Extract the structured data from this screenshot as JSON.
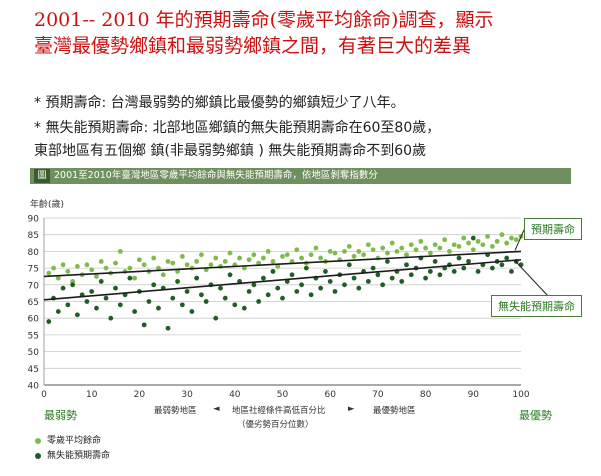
{
  "slide": {
    "title_line1": "2001-- 2010 年的預期壽命(零歲平均餘命)調查，顯示",
    "title_line2": "臺灣最優勢鄉鎮和最弱勢鄉鎮之間，有著巨大的差異",
    "bullets": [
      "* 預期壽命:  台灣最弱勢的鄉鎮比最優勢的鄉鎮短少了八年。",
      "* 無失能預期壽命:  北部地區鄉鎮的無失能預期壽命在60至80歲，",
      "   東部地區有五個鄉  鎮(非最弱勢鄉鎮 ) 無失能預期壽命不到60歲"
    ]
  },
  "figure": {
    "tag": "圖 1",
    "caption": "2001至2010年臺灣地區零歲平均餘命與無失能預期壽命，依地區剝奪指數分",
    "yaxis_title": "年齡(歲)",
    "left_end_label": "最弱勢",
    "right_end_label": "最優勢",
    "left_region_label": "最弱勢地區",
    "right_region_label": "最優勢地區",
    "xaxis_title_line1": "地區社經條件高低百分比",
    "xaxis_title_line2": "（優劣勢百分位數）",
    "arrow_left": "◄",
    "arrow_right": "►",
    "callout_le": "預期壽命",
    "callout_dfle": "無失能預期壽命"
  },
  "colors": {
    "title_red": "#cc1111",
    "le_green": "#7dbb4a",
    "dfle_green": "#1f5e24",
    "banner": "#6f8f5e",
    "callout_text": "#2a7a22"
  },
  "chart_data": {
    "type": "scatter",
    "x_range": [
      0,
      100
    ],
    "ylim": [
      40,
      90
    ],
    "x_ticks": [
      0,
      10,
      20,
      30,
      40,
      50,
      60,
      70,
      80,
      90,
      100
    ],
    "y_ticks": [
      40,
      45,
      50,
      55,
      60,
      65,
      70,
      75,
      80,
      85,
      90
    ],
    "grid": true,
    "legend_position": "bottom-left",
    "series": [
      {
        "name": "零歲平均餘命",
        "trend": {
          "x": [
            0,
            100
          ],
          "y": [
            72.5,
            80
          ]
        },
        "x": [
          1,
          2,
          3,
          4,
          5,
          6,
          7,
          8,
          9,
          10,
          11,
          12,
          13,
          14,
          15,
          16,
          17,
          18,
          19,
          20,
          21,
          22,
          23,
          24,
          25,
          26,
          27,
          28,
          29,
          30,
          31,
          32,
          33,
          34,
          35,
          36,
          37,
          38,
          39,
          40,
          41,
          42,
          43,
          44,
          45,
          46,
          47,
          48,
          49,
          50,
          51,
          52,
          53,
          54,
          55,
          56,
          57,
          58,
          59,
          60,
          61,
          62,
          63,
          64,
          65,
          66,
          67,
          68,
          69,
          70,
          71,
          72,
          73,
          74,
          75,
          76,
          77,
          78,
          79,
          80,
          81,
          82,
          83,
          84,
          85,
          86,
          87,
          88,
          89,
          90,
          91,
          92,
          93,
          94,
          95,
          96,
          97,
          98,
          99,
          100
        ],
        "y": [
          73.5,
          75,
          72,
          76,
          74,
          71,
          75.5,
          73,
          76,
          74.5,
          72.5,
          77,
          75,
          73.5,
          76.5,
          80,
          74,
          75,
          72,
          77.5,
          76,
          74,
          78,
          75,
          73,
          77,
          76.5,
          74,
          78.5,
          76,
          75,
          77,
          79,
          74.5,
          76,
          78,
          75.5,
          77,
          79.5,
          76,
          78,
          75,
          77.5,
          79,
          76.5,
          78,
          80,
          77,
          75.5,
          78.5,
          79,
          77,
          80.5,
          78,
          76.5,
          79,
          81,
          78,
          77,
          80,
          79.5,
          77.5,
          80,
          81.5,
          78.5,
          80,
          79,
          82,
          80.5,
          78,
          81,
          79.5,
          82.5,
          80,
          81,
          79,
          82,
          80.5,
          83,
          81,
          79.5,
          82,
          81,
          83.5,
          80,
          82,
          81.5,
          84,
          82.5,
          80.5,
          83,
          82,
          84.5,
          81.5,
          83,
          85,
          82.5,
          84,
          83.5,
          84.5
        ]
      },
      {
        "name": "無失能預期壽命",
        "trend": {
          "x": [
            0,
            100
          ],
          "y": [
            65.5,
            77.5
          ]
        },
        "x": [
          1,
          2,
          3,
          4,
          5,
          6,
          7,
          8,
          9,
          10,
          11,
          12,
          13,
          14,
          15,
          16,
          17,
          18,
          19,
          20,
          21,
          22,
          23,
          24,
          25,
          26,
          27,
          28,
          29,
          30,
          31,
          32,
          33,
          34,
          35,
          36,
          37,
          38,
          39,
          40,
          41,
          42,
          43,
          44,
          45,
          46,
          47,
          48,
          49,
          50,
          51,
          52,
          53,
          54,
          55,
          56,
          57,
          58,
          59,
          60,
          61,
          62,
          63,
          64,
          65,
          66,
          67,
          68,
          69,
          70,
          71,
          72,
          73,
          74,
          75,
          76,
          77,
          78,
          79,
          80,
          81,
          82,
          83,
          84,
          85,
          86,
          87,
          88,
          89,
          90,
          91,
          92,
          93,
          94,
          95,
          96,
          97,
          98,
          99,
          100
        ],
        "y": [
          59,
          66,
          62,
          69,
          64,
          70,
          61,
          67,
          65,
          68,
          63,
          71,
          66,
          60,
          69,
          64,
          67,
          72,
          62,
          68,
          58,
          65,
          70,
          63,
          69,
          57,
          66,
          71,
          64,
          68,
          62,
          72,
          67,
          65,
          70,
          60,
          69,
          66,
          73,
          64,
          71,
          63,
          68,
          70,
          65,
          72,
          67,
          74,
          69,
          66,
          71,
          73,
          68,
          70,
          75,
          67,
          72,
          69,
          74,
          71,
          68,
          73,
          70,
          76,
          72,
          69,
          74,
          71,
          75,
          73,
          70,
          77,
          72,
          74,
          71,
          76,
          73,
          75,
          78,
          72,
          74,
          77,
          73,
          75,
          76,
          74,
          78,
          75,
          77,
          84,
          74,
          76,
          79,
          75,
          77,
          76,
          78,
          74,
          77,
          76
        ]
      }
    ]
  }
}
